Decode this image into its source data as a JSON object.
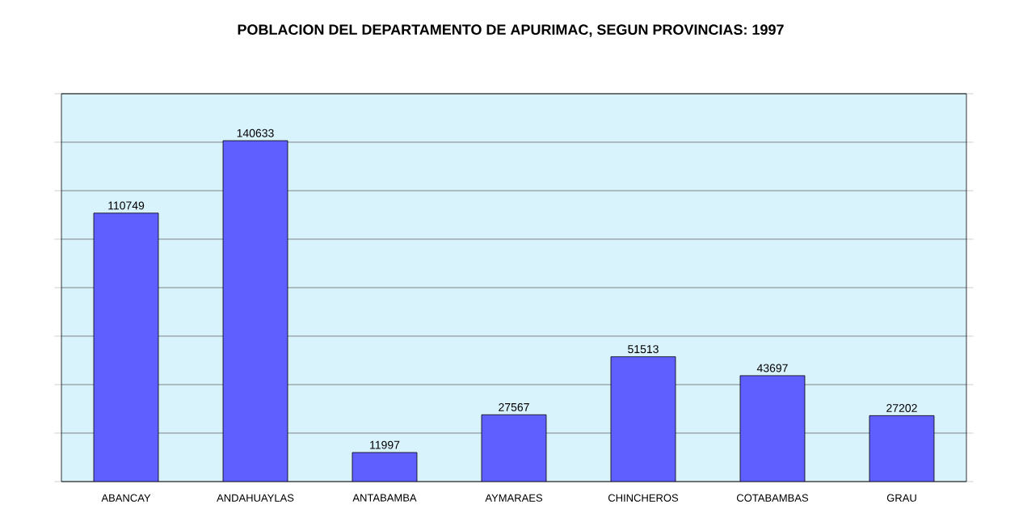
{
  "chart_data": {
    "type": "bar",
    "title": "POBLACION DEL DEPARTAMENTO DE APURIMAC, SEGUN PROVINCIAS: 1997",
    "categories": [
      "ABANCAY",
      "ANDAHUAYLAS",
      "ANTABAMBA",
      "AYMARAES",
      "CHINCHEROS",
      "COTABAMBAS",
      "GRAU"
    ],
    "values": [
      110749,
      140633,
      11997,
      27567,
      51513,
      43697,
      27202
    ],
    "color": "#5f5fff",
    "ylim": [
      0,
      160000
    ],
    "yticks": [
      {
        "value": 0,
        "label": null
      },
      {
        "value": 20000,
        "label": null
      },
      {
        "value": 40000,
        "label": null
      },
      {
        "value": 60000,
        "label": null
      },
      {
        "value": 80000,
        "label": null
      },
      {
        "value": 100000,
        "label": null
      },
      {
        "value": 120000,
        "label": null
      },
      {
        "value": 140000,
        "label": null
      },
      {
        "value": 160000,
        "label": null
      }
    ],
    "tick_labels": "x",
    "grid": "y",
    "data_labels": true
  }
}
